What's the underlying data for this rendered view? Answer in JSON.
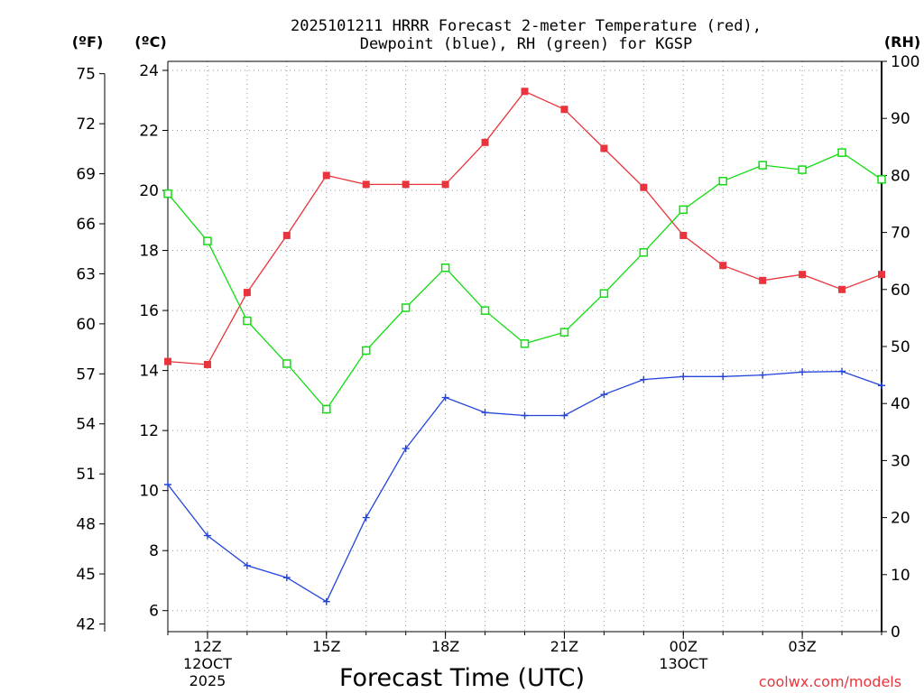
{
  "chart_data": {
    "type": "line",
    "title": [
      "2025101211 HRRR Forecast 2-meter Temperature (red),",
      "Dewpoint (blue), RH (green) for KGSP"
    ],
    "xlabel": "Forecast Time (UTC)",
    "units": {
      "left_outer": "(ºF)",
      "left_inner": "(ºC)",
      "right": "(RH)"
    },
    "x": [
      0,
      1,
      2,
      3,
      4,
      5,
      6,
      7,
      8,
      9,
      10,
      11,
      12,
      13,
      14,
      15,
      16,
      17,
      18
    ],
    "xlim": [
      0,
      18
    ],
    "x_ticks": [
      {
        "x": 1,
        "lines": [
          "12Z",
          "12OCT",
          "2025"
        ]
      },
      {
        "x": 4,
        "lines": [
          "15Z"
        ]
      },
      {
        "x": 7,
        "lines": [
          "18Z"
        ]
      },
      {
        "x": 10,
        "lines": [
          "21Z"
        ]
      },
      {
        "x": 13,
        "lines": [
          "00Z",
          "13OCT"
        ]
      },
      {
        "x": 16,
        "lines": [
          "03Z"
        ]
      }
    ],
    "y_celsius": {
      "lim": [
        5.3,
        24.3
      ],
      "ticks": [
        6,
        8,
        10,
        12,
        14,
        16,
        18,
        20,
        22,
        24
      ]
    },
    "y_fahrenheit": {
      "ticks": [
        42,
        45,
        48,
        51,
        54,
        57,
        60,
        63,
        66,
        69,
        72,
        75
      ]
    },
    "y_rh": {
      "lim": [
        0,
        100
      ],
      "ticks": [
        0,
        10,
        20,
        30,
        40,
        50,
        60,
        70,
        80,
        90,
        100
      ]
    },
    "series": [
      {
        "name": "2-meter Temperature",
        "color": "#e8343c",
        "axis": "celsius",
        "marker": "filled-square",
        "values": [
          14.3,
          14.2,
          16.6,
          18.5,
          20.5,
          20.2,
          20.2,
          20.2,
          21.6,
          23.3,
          22.7,
          21.4,
          20.1,
          18.5,
          17.5,
          17.0,
          17.2,
          16.7,
          17.2
        ]
      },
      {
        "name": "Dewpoint",
        "color": "#2244dd",
        "axis": "celsius",
        "marker": "plus",
        "values": [
          10.2,
          8.5,
          7.5,
          7.1,
          6.3,
          9.1,
          11.4,
          13.1,
          12.6,
          12.5,
          12.5,
          13.2,
          13.7,
          13.8,
          13.8,
          13.85,
          13.95,
          13.97,
          13.5
        ]
      },
      {
        "name": "RH",
        "color": "#11dd11",
        "axis": "rh",
        "marker": "open-square",
        "values": [
          76.8,
          68.5,
          54.5,
          47.0,
          39.0,
          49.3,
          56.8,
          63.8,
          56.3,
          50.5,
          52.5,
          59.3,
          66.5,
          74.0,
          79.0,
          81.8,
          81.0,
          84.0,
          79.3
        ]
      }
    ],
    "grid": true,
    "watermark": "coolwx.com/models"
  }
}
